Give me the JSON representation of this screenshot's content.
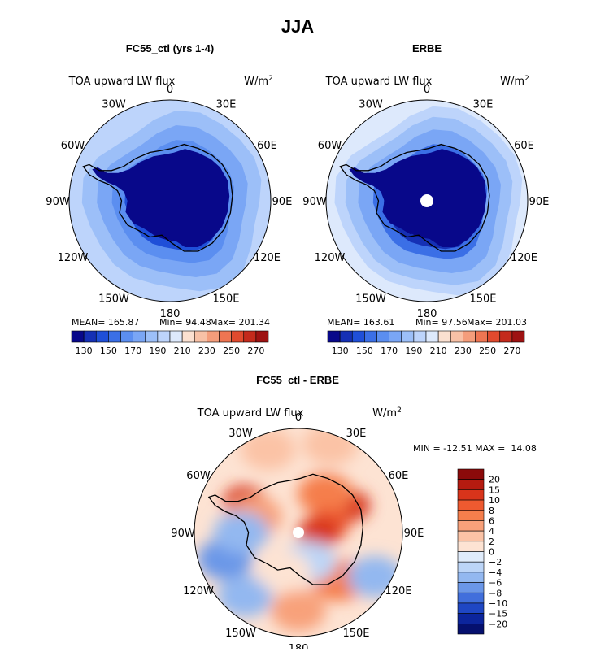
{
  "figure": {
    "title": "JJA",
    "min_max_text": "MIN = -12.51 MAX =  14.08"
  },
  "chart_data": [
    {
      "type": "heatmap",
      "title": "FC55_ctl (yrs 1-4)",
      "subtitle": "TOA upward LW flux",
      "units": "W/m2",
      "projection": "south polar stereographic",
      "longitude_labels": [
        "0",
        "30E",
        "60E",
        "90E",
        "120E",
        "150E",
        "180",
        "150W",
        "120W",
        "90W",
        "60W",
        "30W"
      ],
      "stats": {
        "mean_text": "MEAN= 165.87",
        "min_text": "Min=  94.48",
        "max_text": "Max= 201.34",
        "mean": 165.87,
        "min": 94.48,
        "max": 201.34
      },
      "colorbar": {
        "levels": [
          120,
          130,
          140,
          150,
          160,
          170,
          180,
          190,
          200,
          210,
          220,
          230,
          240,
          250,
          260,
          270,
          280
        ],
        "tick_labels": [
          "130",
          "150",
          "170",
          "190",
          "210",
          "230",
          "250",
          "270"
        ],
        "colors": [
          "#08088a",
          "#1530b5",
          "#1f4fd8",
          "#3b6fe6",
          "#5b8ef0",
          "#7aa6f5",
          "#9cbff8",
          "#bdd4fb",
          "#dde9fc",
          "#fbe0d0",
          "#f8c1a6",
          "#f49d7b",
          "#ee7552",
          "#e14a2e",
          "#c42a1c",
          "#9e1212"
        ]
      },
      "field_rings": [
        {
          "radius_fraction": 1.0,
          "value": 195
        },
        {
          "radius_fraction": 0.88,
          "value": 185
        },
        {
          "radius_fraction": 0.74,
          "value": 175
        },
        {
          "radius_fraction": 0.6,
          "value": 165
        },
        {
          "radius_fraction": 0.48,
          "value": 145
        },
        {
          "radius_fraction": 0.4,
          "value": 125
        }
      ]
    },
    {
      "type": "heatmap",
      "title": "ERBE",
      "subtitle": "TOA upward LW flux",
      "units": "W/m2",
      "projection": "south polar stereographic",
      "longitude_labels": [
        "0",
        "30E",
        "60E",
        "90E",
        "120E",
        "150E",
        "180",
        "150W",
        "120W",
        "90W",
        "60W",
        "30W"
      ],
      "stats": {
        "mean_text": "MEAN= 163.61",
        "min_text": "Min=  97.56",
        "max_text": "Max= 201.03",
        "mean": 163.61,
        "min": 97.56,
        "max": 201.03
      },
      "colorbar": {
        "levels": [
          120,
          130,
          140,
          150,
          160,
          170,
          180,
          190,
          200,
          210,
          220,
          230,
          240,
          250,
          260,
          270,
          280
        ],
        "tick_labels": [
          "130",
          "150",
          "170",
          "190",
          "210",
          "230",
          "250",
          "270"
        ],
        "colors": [
          "#08088a",
          "#1530b5",
          "#1f4fd8",
          "#3b6fe6",
          "#5b8ef0",
          "#7aa6f5",
          "#9cbff8",
          "#bdd4fb",
          "#dde9fc",
          "#fbe0d0",
          "#f8c1a6",
          "#f49d7b",
          "#ee7552",
          "#e14a2e",
          "#c42a1c",
          "#9e1212"
        ]
      },
      "field_rings": [
        {
          "radius_fraction": 1.0,
          "value": 205
        },
        {
          "radius_fraction": 0.92,
          "value": 195
        },
        {
          "radius_fraction": 0.82,
          "value": 185
        },
        {
          "radius_fraction": 0.7,
          "value": 175
        },
        {
          "radius_fraction": 0.56,
          "value": 155
        },
        {
          "radius_fraction": 0.46,
          "value": 135
        },
        {
          "radius_fraction": 0.38,
          "value": 125
        }
      ],
      "missing_pole": true
    },
    {
      "type": "heatmap",
      "title": "FC55_ctl - ERBE",
      "subtitle": "TOA upward LW flux",
      "units": "W/m2",
      "projection": "south polar stereographic",
      "longitude_labels": [
        "0",
        "30E",
        "60E",
        "90E",
        "120E",
        "150E",
        "180",
        "150W",
        "120W",
        "90W",
        "60W",
        "30W"
      ],
      "stats": {
        "min": -12.51,
        "max": 14.08
      },
      "colorbar": {
        "orientation": "vertical",
        "tick_labels": [
          "20",
          "15",
          "10",
          "8",
          "6",
          "4",
          "2",
          "0",
          "-2",
          "-4",
          "-6",
          "-8",
          "-10",
          "-15",
          "-20"
        ],
        "colors": [
          "#8b0a0a",
          "#b51b10",
          "#d8341b",
          "#ee5a30",
          "#f57e4c",
          "#f8a17a",
          "#fbc3a6",
          "#fde3d3",
          "#e0ecfb",
          "#bcd5f7",
          "#93b8f0",
          "#6b97e8",
          "#416fdc",
          "#1f47c4",
          "#0c259c",
          "#05106e"
        ]
      },
      "blobs": [
        {
          "lon": 62,
          "r": 0.55,
          "value": 12
        },
        {
          "lon": 35,
          "r": 0.45,
          "value": 8
        },
        {
          "lon": 75,
          "r": 0.3,
          "value": 10
        },
        {
          "lon": 300,
          "r": 0.6,
          "value": 15
        },
        {
          "lon": 290,
          "r": 0.45,
          "value": 6
        },
        {
          "lon": 180,
          "r": 0.75,
          "value": 6
        },
        {
          "lon": 140,
          "r": 0.6,
          "value": 8
        },
        {
          "lon": 90,
          "r": 0.2,
          "value": 12
        },
        {
          "lon": 250,
          "r": 0.75,
          "value": -6
        },
        {
          "lon": 220,
          "r": 0.8,
          "value": -4
        },
        {
          "lon": 270,
          "r": 0.55,
          "value": -4
        },
        {
          "lon": 120,
          "r": 0.85,
          "value": -4
        },
        {
          "lon": 20,
          "r": 0.9,
          "value": 4
        },
        {
          "lon": 340,
          "r": 0.85,
          "value": 4
        },
        {
          "lon": 160,
          "r": 0.3,
          "value": -2
        },
        {
          "lon": 200,
          "r": 0.4,
          "value": 2
        }
      ]
    }
  ]
}
